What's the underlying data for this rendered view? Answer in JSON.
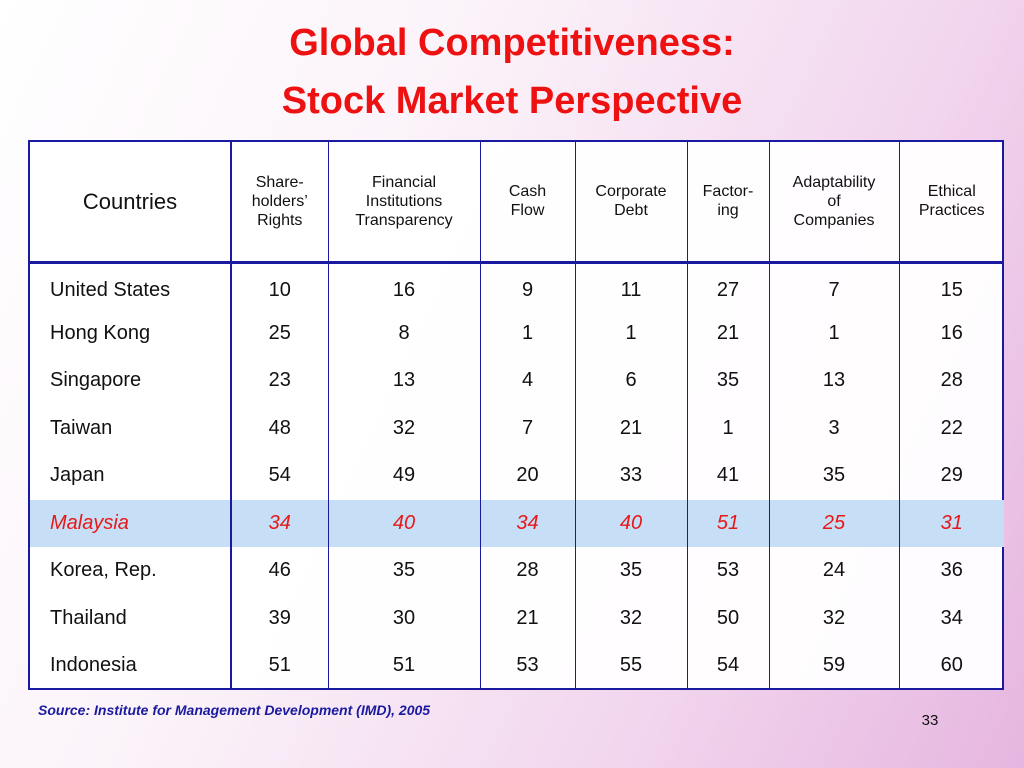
{
  "slide": {
    "title_line1": "Global Competitiveness:",
    "title_line2": "Stock Market Perspective",
    "source": "Source: Institute for Management Development (IMD), 2005",
    "page_number": "33"
  },
  "table": {
    "headers": [
      [
        "Countries"
      ],
      [
        "Share-",
        "holders’",
        "Rights"
      ],
      [
        "Financial",
        "Institutions",
        "Transparency"
      ],
      [
        "Cash",
        "Flow"
      ],
      [
        "Corporate",
        "Debt"
      ],
      [
        "Factor-",
        "ing"
      ],
      [
        "Adaptability",
        "of",
        "Companies"
      ],
      [
        "Ethical",
        "Practices"
      ]
    ],
    "rows": [
      [
        "United States",
        "10",
        "16",
        "9",
        "11",
        "27",
        "7",
        "15"
      ],
      [
        "Hong Kong",
        "25",
        "8",
        "1",
        "1",
        "21",
        "1",
        "16"
      ],
      [
        "Singapore",
        "23",
        "13",
        "4",
        "6",
        "35",
        "13",
        "28"
      ],
      [
        "Taiwan",
        "48",
        "32",
        "7",
        "21",
        "1",
        "3",
        "22"
      ],
      [
        "Japan",
        "54",
        "49",
        "20",
        "33",
        "41",
        "35",
        "29"
      ],
      [
        "Malaysia",
        "34",
        "40",
        "34",
        "40",
        "51",
        "25",
        "31"
      ],
      [
        "Korea, Rep.",
        "46",
        "35",
        "28",
        "35",
        "53",
        "24",
        "36"
      ],
      [
        "Thailand",
        "39",
        "30",
        "21",
        "32",
        "50",
        "32",
        "34"
      ],
      [
        "Indonesia",
        "51",
        "51",
        "53",
        "55",
        "54",
        "59",
        "60"
      ]
    ],
    "highlight_row": "Malaysia",
    "highlight_colors": {
      "text": "#e81818",
      "background": "#c6dff7"
    }
  }
}
